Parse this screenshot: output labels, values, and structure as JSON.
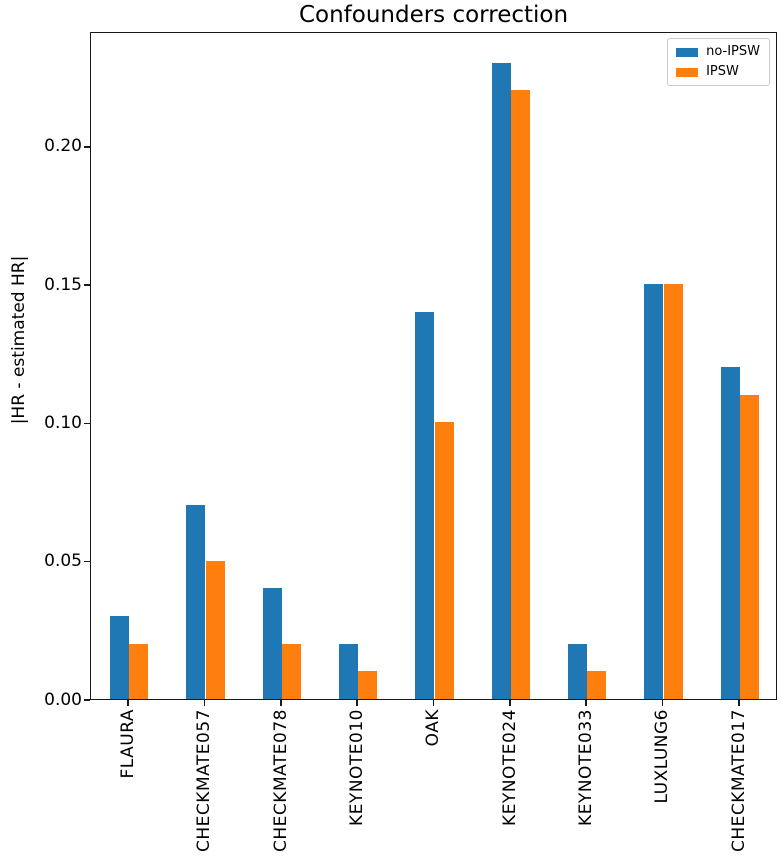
{
  "title": "Confounders correction",
  "colors": {
    "no_ipsw": "#1f77b4",
    "ipsw": "#ff7f0e",
    "spine": "#1a1a1a",
    "legend_border": "#cccccc",
    "background": "#ffffff"
  },
  "legend": {
    "position": "upper-right",
    "items": [
      {
        "label": "no-IPSW",
        "color": "#1f77b4"
      },
      {
        "label": "IPSW",
        "color": "#ff7f0e"
      }
    ]
  },
  "chart_data": {
    "type": "bar",
    "title": "Confounders correction",
    "xlabel": "",
    "ylabel": "|HR - estimated HR|",
    "categories": [
      "FLAURA",
      "CHECKMATE057",
      "CHECKMATE078",
      "KEYNOTE010",
      "OAK",
      "KEYNOTE024",
      "KEYNOTE033",
      "LUXLUNG6",
      "CHECKMATE017"
    ],
    "series": [
      {
        "name": "no-IPSW",
        "color": "#1f77b4",
        "values": [
          0.03,
          0.07,
          0.04,
          0.02,
          0.14,
          0.23,
          0.02,
          0.15,
          0.12
        ]
      },
      {
        "name": "IPSW",
        "color": "#ff7f0e",
        "values": [
          0.02,
          0.05,
          0.02,
          0.01,
          0.1,
          0.22,
          0.01,
          0.15,
          0.11
        ]
      }
    ],
    "ylim": [
      0,
      0.2415
    ],
    "yticks": [
      0.0,
      0.05,
      0.1,
      0.15,
      0.2
    ],
    "ytick_labels": [
      "0.00",
      "0.05",
      "0.10",
      "0.15",
      "0.20"
    ],
    "x_labels_rotation_deg": 90,
    "grid": false,
    "legend_position": "upper right",
    "bar_group_fraction": 0.5
  }
}
